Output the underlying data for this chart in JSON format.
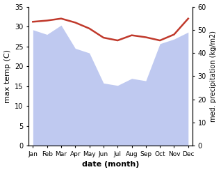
{
  "months": [
    "Jan",
    "Feb",
    "Mar",
    "Apr",
    "May",
    "Jun",
    "Jul",
    "Aug",
    "Sep",
    "Oct",
    "Nov",
    "Dec"
  ],
  "x": [
    0,
    1,
    2,
    3,
    4,
    5,
    6,
    7,
    8,
    9,
    10,
    11
  ],
  "temperature": [
    31.2,
    31.5,
    32.0,
    31.0,
    29.5,
    27.2,
    26.5,
    27.8,
    27.3,
    26.5,
    28.0,
    32.0
  ],
  "precipitation": [
    50,
    48,
    52,
    42,
    40,
    27,
    26,
    29,
    28,
    44,
    46,
    49
  ],
  "temp_color": "#c0392b",
  "precip_fill_color": "#bfc9f0",
  "background_color": "#ffffff",
  "xlabel": "date (month)",
  "ylabel_left": "max temp (C)",
  "ylabel_right": "med. precipitation (kg/m2)",
  "ylim_left": [
    0,
    35
  ],
  "ylim_right": [
    0,
    60
  ],
  "yticks_left": [
    0,
    5,
    10,
    15,
    20,
    25,
    30,
    35
  ],
  "yticks_right": [
    0,
    10,
    20,
    30,
    40,
    50,
    60
  ]
}
